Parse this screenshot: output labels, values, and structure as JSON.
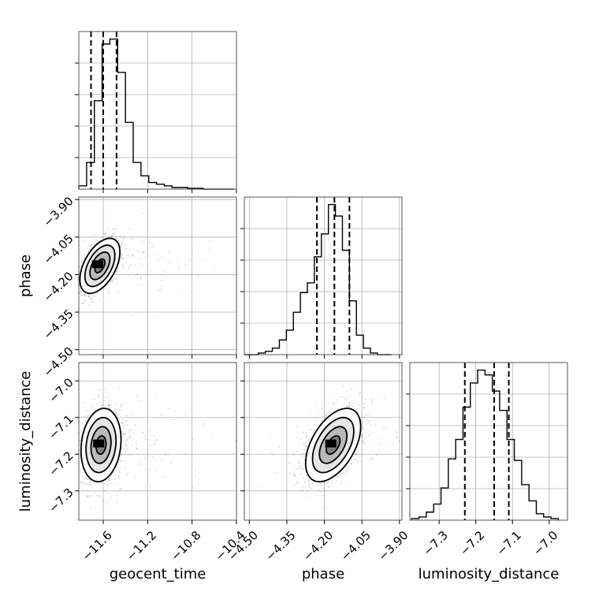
{
  "chart_data": {
    "type": "corner",
    "parameters": [
      "geocent_time",
      "phase",
      "luminosity_distance"
    ],
    "ticks": {
      "geocent_time": [
        -11.6,
        -11.2,
        -10.8,
        -10.4
      ],
      "phase": [
        -4.5,
        -4.35,
        -4.2,
        -4.05,
        -3.9
      ],
      "luminosity_distance": [
        -7.3,
        -7.2,
        -7.1,
        -7.0
      ]
    },
    "tick_labels": {
      "geocent_time": [
        "−11.6",
        "−11.2",
        "−10.8",
        "−10.4"
      ],
      "phase": [
        "−4.50",
        "−4.35",
        "−4.20",
        "−4.05",
        "−3.90"
      ],
      "luminosity_distance": [
        "−7.3",
        "−7.2",
        "−7.1",
        "−7.0"
      ]
    },
    "ranges": {
      "geocent_time": [
        -11.82,
        -10.4
      ],
      "phase": [
        -4.52,
        -3.89
      ],
      "luminosity_distance": [
        -7.38,
        -6.95
      ]
    },
    "quantiles": {
      "geocent_time": [
        -11.71,
        -11.6,
        -11.48
      ],
      "phase": [
        -4.23,
        -4.16,
        -4.1
      ],
      "luminosity_distance": [
        -7.23,
        -7.15,
        -7.11
      ]
    },
    "histograms": {
      "geocent_time": {
        "edges": [
          -11.82,
          -11.75,
          -11.68,
          -11.61,
          -11.54,
          -11.47,
          -11.4,
          -11.33,
          -11.26,
          -11.19,
          -11.12,
          -11.05,
          -10.98,
          -10.91,
          -10.84,
          -10.77,
          -10.7,
          -10.63,
          -10.56,
          -10.49,
          -10.42
        ],
        "counts": [
          2,
          16,
          53,
          87,
          90,
          70,
          40,
          16,
          8,
          4,
          3,
          2,
          1,
          1,
          0.5,
          0.5,
          0,
          0,
          0,
          0
        ]
      },
      "phase": {
        "edges": [
          -4.52,
          -4.492,
          -4.464,
          -4.436,
          -4.408,
          -4.38,
          -4.352,
          -4.324,
          -4.296,
          -4.268,
          -4.24,
          -4.212,
          -4.184,
          -4.156,
          -4.128,
          -4.1,
          -4.072,
          -4.044,
          -4.016,
          -3.988,
          -3.96,
          -3.932
        ],
        "counts": [
          0,
          0,
          1,
          2,
          4,
          9,
          15,
          26,
          38,
          44,
          60,
          74,
          92,
          85,
          64,
          33,
          12,
          4,
          1,
          0,
          0
        ]
      },
      "luminosity_distance": {
        "edges": [
          -7.375,
          -7.355,
          -7.335,
          -7.315,
          -7.295,
          -7.275,
          -7.255,
          -7.235,
          -7.215,
          -7.195,
          -7.175,
          -7.155,
          -7.135,
          -7.115,
          -7.095,
          -7.075,
          -7.055,
          -7.035,
          -7.015,
          -6.995,
          -6.975
        ],
        "counts": [
          1,
          2,
          5,
          10,
          20,
          38,
          50,
          70,
          85,
          93,
          90,
          80,
          68,
          50,
          37,
          22,
          12,
          4,
          2,
          1
        ]
      }
    },
    "pairs": [
      {
        "x": "geocent_time",
        "y": "phase",
        "mean": [
          -11.63,
          -4.165
        ],
        "std": [
          0.09,
          0.055
        ],
        "corr": 0.5,
        "contour_sigmas": [
          0.5,
          1.0,
          1.5,
          2.0
        ]
      },
      {
        "x": "geocent_time",
        "y": "luminosity_distance",
        "mean": [
          -11.62,
          -7.175
        ],
        "std": [
          0.09,
          0.05
        ],
        "corr": 0.15,
        "contour_sigmas": [
          0.5,
          1.0,
          1.5,
          2.0
        ]
      },
      {
        "x": "phase",
        "y": "luminosity_distance",
        "mean": [
          -4.165,
          -7.175
        ],
        "std": [
          0.055,
          0.05
        ],
        "corr": 0.5,
        "contour_sigmas": [
          0.5,
          1.0,
          1.5,
          2.0
        ]
      }
    ],
    "grid": true,
    "colors": {
      "line": "#000000",
      "grid": "#b0b0b0",
      "points": "#000000"
    }
  }
}
